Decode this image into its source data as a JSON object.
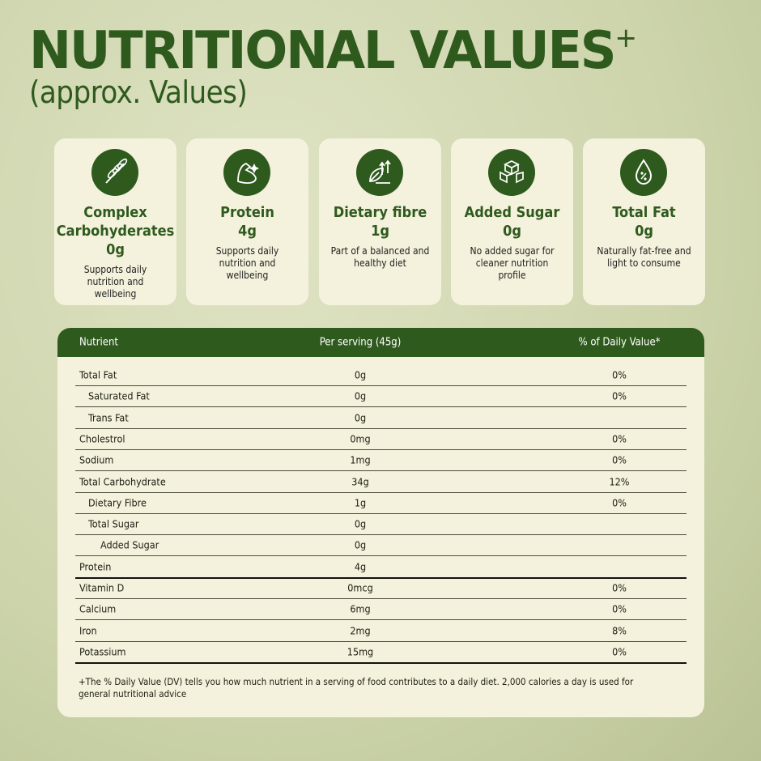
{
  "header": {
    "title": "NUTRITIONAL VALUES",
    "title_mark": "+",
    "subtitle": "(approx. Values)"
  },
  "cards": [
    {
      "name": "Complex Carbohyderates",
      "value": "0g",
      "description": "Supports daily nutrition and wellbeing"
    },
    {
      "name": "Protein",
      "value": "4g",
      "description": "Supports daily nutrition and wellbeing"
    },
    {
      "name": "Dietary fibre",
      "value": "1g",
      "description": "Part of a balanced and healthy diet"
    },
    {
      "name": "Added Sugar",
      "value": "0g",
      "description": "No added sugar for cleaner nutrition profile"
    },
    {
      "name": "Total Fat",
      "value": "0g",
      "description": "Naturally fat-free and light to consume"
    }
  ],
  "table": {
    "columns": [
      "Nutrient",
      "Per serving (45g)",
      "% of Daily Value*"
    ],
    "sections": [
      {
        "rows": [
          {
            "nutrient": "Total Fat",
            "serving": "0g",
            "dv": "0%",
            "children": [
              {
                "nutrient": "Saturated Fat",
                "serving": "0g",
                "dv": "0%"
              },
              {
                "nutrient": "Trans Fat",
                "serving": "0g"
              }
            ]
          },
          {
            "nutrient": "Cholestrol",
            "serving": "0mg",
            "dv": "0%"
          },
          {
            "nutrient": "Sodium",
            "serving": "1mg",
            "dv": "0%"
          },
          {
            "nutrient": "Total Carbohydrate",
            "serving": "34g",
            "dv": "12%",
            "children": [
              {
                "nutrient": "Dietary Fibre",
                "serving": "1g",
                "dv": "0%"
              },
              {
                "nutrient": "Total Sugar",
                "serving": "0g",
                "children": [
                  {
                    "nutrient": "Added Sugar",
                    "serving": "0g"
                  }
                ]
              }
            ]
          },
          {
            "nutrient": "Protein",
            "serving": "4g"
          }
        ]
      },
      {
        "rows": [
          {
            "nutrient": "Vitamin D",
            "serving": "0mcg",
            "dv": "0%"
          },
          {
            "nutrient": "Calcium",
            "serving": "6mg",
            "dv": "0%"
          },
          {
            "nutrient": "Iron",
            "serving": "2mg",
            "dv": "8%"
          },
          {
            "nutrient": "Potassium",
            "serving": "15mg",
            "dv": "0%"
          }
        ]
      }
    ],
    "footnote": "+The % Daily Value (DV) tells you how much nutrient in a serving of food contributes to a daily  diet. 2,000 calories a day is used for general nutritional advice"
  }
}
